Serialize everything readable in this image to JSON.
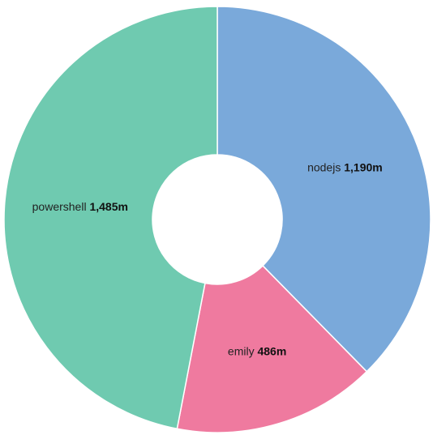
{
  "chart_data": {
    "type": "pie",
    "subtype": "donut",
    "title": "",
    "slices": [
      {
        "label": "nodejs",
        "value": 1190,
        "display_value": "1,190m",
        "color": "#7aa9da"
      },
      {
        "label": "emily",
        "value": 486,
        "display_value": "486m",
        "color": "#ef7a9f"
      },
      {
        "label": "powershell",
        "value": 1485,
        "display_value": "1,485m",
        "color": "#6fcab0"
      }
    ],
    "start_angle": "top",
    "direction": "clockwise",
    "legend": "none",
    "unit": "m"
  }
}
